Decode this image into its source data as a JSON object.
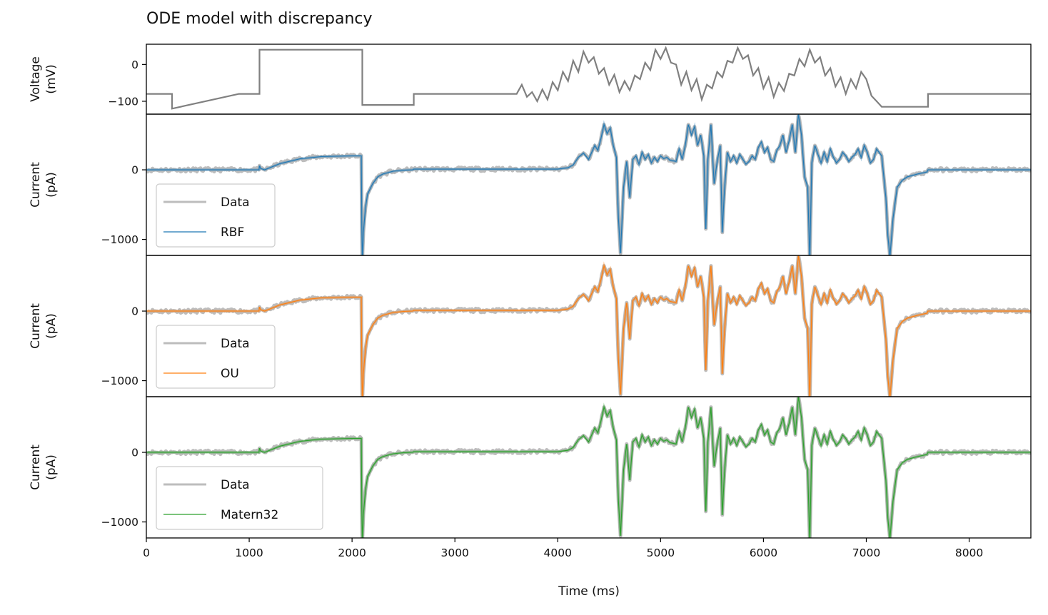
{
  "chart_data": {
    "type": "line",
    "title": "ODE model with discrepancy",
    "xlabel": "Time (ms)",
    "xlim": [
      0,
      8600
    ],
    "xticks": [
      0,
      1000,
      2000,
      3000,
      4000,
      5000,
      6000,
      7000,
      8000
    ],
    "xtick_labels": [
      "0",
      "1000",
      "2000",
      "3000",
      "4000",
      "5000",
      "6000",
      "7000",
      "8000"
    ],
    "colors": {
      "voltage": "#808080",
      "data": "#bdbdbd",
      "RBF": "#1f77b4",
      "OU": "#ff7f0e",
      "Matern32": "#2ca02c"
    },
    "panels": [
      {
        "ylabel": [
          "Voltage",
          "(mV)"
        ],
        "ylim": [
          -135,
          55
        ],
        "yticks": [
          0,
          -100
        ],
        "ytick_labels": [
          "0",
          "−100"
        ],
        "series": [
          {
            "color_key": "voltage",
            "x": [
              0,
              250,
              250,
              900,
              900,
              1100,
              1100,
              2100,
              2100,
              2600,
              2600,
              3600,
              3650,
              3700,
              3750,
              3800,
              3850,
              3900,
              3950,
              4000,
              4050,
              4100,
              4150,
              4200,
              4250,
              4300,
              4350,
              4400,
              4450,
              4500,
              4550,
              4600,
              4650,
              4700,
              4750,
              4800,
              4850,
              4900,
              4950,
              5000,
              5050,
              5100,
              5150,
              5200,
              5250,
              5300,
              5350,
              5400,
              5450,
              5500,
              5550,
              5600,
              5650,
              5700,
              5750,
              5800,
              5850,
              5900,
              5950,
              6000,
              6050,
              6100,
              6150,
              6200,
              6250,
              6300,
              6350,
              6400,
              6450,
              6500,
              6550,
              6600,
              6650,
              6700,
              6750,
              6800,
              6850,
              6900,
              6950,
              7000,
              7050,
              7100,
              7150,
              7200,
              7200,
              7600,
              7600,
              8600
            ],
            "y": [
              -80,
              -80,
              -120,
              -80,
              -80,
              -80,
              40,
              40,
              -110,
              -110,
              -80,
              -80,
              -55,
              -88,
              -75,
              -100,
              -68,
              -95,
              -48,
              -70,
              -20,
              -45,
              10,
              -20,
              35,
              5,
              20,
              -25,
              -10,
              -55,
              -28,
              -75,
              -45,
              -70,
              -30,
              -40,
              5,
              -15,
              40,
              15,
              45,
              5,
              0,
              -55,
              -20,
              -70,
              -40,
              -95,
              -55,
              -65,
              -20,
              -35,
              10,
              5,
              45,
              15,
              25,
              -30,
              -10,
              -65,
              -35,
              -88,
              -50,
              -72,
              -25,
              -30,
              15,
              -5,
              40,
              5,
              20,
              -30,
              -10,
              -60,
              -35,
              -80,
              -40,
              -65,
              -20,
              -40,
              -85,
              -100,
              -115,
              -115,
              -115,
              -115,
              -80,
              -80
            ]
          }
        ]
      },
      {
        "ylabel": [
          "Current",
          "(pA)"
        ],
        "ylim": [
          -1230,
          800
        ],
        "yticks": [
          0,
          -1000
        ],
        "ytick_labels": [
          "0",
          "−1000"
        ],
        "legend": {
          "entries": [
            "Data",
            "RBF"
          ],
          "placement": "lower-left"
        },
        "series": [
          {
            "name": "Data",
            "color_key": "data",
            "ref": "current"
          },
          {
            "name": "RBF",
            "color_key": "RBF",
            "ref": "current"
          }
        ]
      },
      {
        "ylabel": [
          "Current",
          "(pA)"
        ],
        "ylim": [
          -1230,
          800
        ],
        "yticks": [
          0,
          -1000
        ],
        "ytick_labels": [
          "0",
          "−1000"
        ],
        "legend": {
          "entries": [
            "Data",
            "OU"
          ],
          "placement": "lower-left"
        },
        "series": [
          {
            "name": "Data",
            "color_key": "data",
            "ref": "current"
          },
          {
            "name": "OU",
            "color_key": "OU",
            "ref": "current"
          }
        ]
      },
      {
        "ylabel": [
          "Current",
          "(pA)"
        ],
        "ylim": [
          -1230,
          800
        ],
        "yticks": [
          0,
          -1000
        ],
        "ytick_labels": [
          "0",
          "−1000"
        ],
        "legend": {
          "entries": [
            "Data",
            "Matern32"
          ],
          "placement": "lower-left"
        },
        "series": [
          {
            "name": "Data",
            "color_key": "data",
            "ref": "current"
          },
          {
            "name": "Matern32",
            "color_key": "Matern32",
            "ref": "current"
          }
        ]
      }
    ],
    "current": {
      "x": [
        0,
        250,
        1095,
        1100,
        1110,
        1150,
        1300,
        1500,
        1700,
        2000,
        2090,
        2095,
        2100,
        2110,
        2130,
        2150,
        2200,
        2250,
        2300,
        2400,
        2500,
        2590,
        2600,
        3000,
        3500,
        4000,
        4100,
        4150,
        4200,
        4250,
        4300,
        4330,
        4360,
        4390,
        4420,
        4450,
        4480,
        4510,
        4540,
        4570,
        4590,
        4610,
        4640,
        4670,
        4700,
        4730,
        4760,
        4790,
        4820,
        4850,
        4880,
        4910,
        4940,
        4970,
        5000,
        5030,
        5060,
        5090,
        5120,
        5150,
        5180,
        5210,
        5240,
        5270,
        5300,
        5330,
        5360,
        5390,
        5420,
        5440,
        5460,
        5490,
        5520,
        5550,
        5580,
        5600,
        5620,
        5650,
        5680,
        5710,
        5740,
        5770,
        5800,
        5830,
        5860,
        5890,
        5920,
        5950,
        5980,
        6010,
        6040,
        6070,
        6100,
        6130,
        6160,
        6190,
        6220,
        6250,
        6280,
        6310,
        6340,
        6370,
        6400,
        6430,
        6450,
        6470,
        6500,
        6530,
        6560,
        6590,
        6620,
        6650,
        6680,
        6710,
        6740,
        6770,
        6800,
        6830,
        6860,
        6890,
        6920,
        6950,
        6980,
        7010,
        7040,
        7070,
        7100,
        7150,
        7190,
        7210,
        7230,
        7260,
        7300,
        7350,
        7400,
        7500,
        7590,
        7600,
        8000,
        8600
      ],
      "y": [
        0,
        0,
        0,
        60,
        20,
        0,
        90,
        160,
        190,
        200,
        200,
        -800,
        -1300,
        -900,
        -550,
        -350,
        -200,
        -100,
        -60,
        -20,
        -5,
        0,
        10,
        10,
        10,
        10,
        30,
        70,
        180,
        240,
        150,
        250,
        350,
        280,
        450,
        650,
        520,
        600,
        350,
        180,
        -700,
        -1200,
        -250,
        120,
        -400,
        150,
        200,
        80,
        250,
        150,
        220,
        100,
        180,
        120,
        200,
        160,
        180,
        140,
        130,
        120,
        300,
        150,
        350,
        650,
        500,
        620,
        350,
        500,
        200,
        -850,
        150,
        650,
        -200,
        120,
        350,
        -900,
        -300,
        250,
        120,
        200,
        100,
        220,
        150,
        80,
        120,
        200,
        150,
        320,
        400,
        250,
        320,
        150,
        120,
        280,
        350,
        500,
        250,
        420,
        650,
        250,
        800,
        500,
        -100,
        -250,
        -1300,
        100,
        350,
        220,
        100,
        250,
        120,
        300,
        180,
        100,
        150,
        250,
        200,
        120,
        180,
        220,
        300,
        180,
        350,
        250,
        100,
        150,
        300,
        200,
        -400,
        -950,
        -1250,
        -700,
        -250,
        -150,
        -100,
        -60,
        -30,
        0,
        0,
        0
      ]
    }
  }
}
